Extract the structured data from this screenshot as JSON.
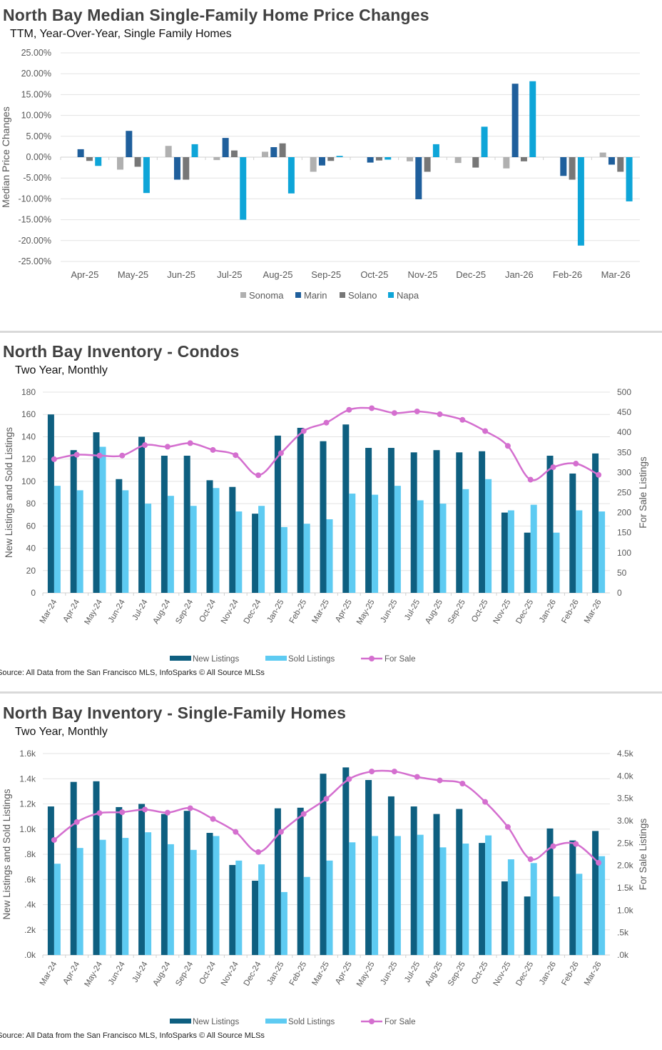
{
  "colors": {
    "sonoma": "#b0b0b0",
    "marin": "#1f5f9c",
    "solano": "#777777",
    "napa": "#0ea5d8",
    "new": "#0e5f80",
    "sold": "#5ecbf2",
    "for_sale": "#d46fcf",
    "grid": "#e3e3e3"
  },
  "chart_data": [
    {
      "type": "bar",
      "title": "North Bay Median Single-Family Home Price Changes",
      "subtitle": "TTM, Year-Over-Year, Single Family Homes",
      "ylabel": "Median Price Changes",
      "ylim": [
        -25,
        25
      ],
      "yticks": [
        "25.00%",
        "20.00%",
        "15.00%",
        "10.00%",
        "5.00%",
        "0.00%",
        "-5.00%",
        "-10.00%",
        "-15.00%",
        "-20.00%",
        "-25.00%"
      ],
      "grid": true,
      "legend": "bottom",
      "categories": [
        "Apr-25",
        "May-25",
        "Jun-25",
        "Jul-25",
        "Aug-25",
        "Sep-25",
        "Oct-25",
        "Nov-25",
        "Dec-25",
        "Jan-26",
        "Feb-26",
        "Mar-26"
      ],
      "series": [
        {
          "name": "Sonoma",
          "values": [
            0,
            -3.0,
            2.7,
            -0.7,
            1.3,
            -3.5,
            0,
            -1.0,
            -1.4,
            -2.7,
            0,
            1.1
          ]
        },
        {
          "name": "Marin",
          "values": [
            1.9,
            6.3,
            -5.4,
            4.6,
            2.4,
            -2.0,
            -1.3,
            -10.1,
            0,
            17.6,
            -4.5,
            -1.8
          ]
        },
        {
          "name": "Solano",
          "values": [
            -0.9,
            -2.3,
            -5.4,
            1.6,
            3.3,
            -0.9,
            -0.8,
            -3.5,
            -2.5,
            -1.0,
            -5.4,
            -3.5
          ]
        },
        {
          "name": "Napa",
          "values": [
            -2.1,
            -8.6,
            3.1,
            -15.0,
            -8.7,
            0.3,
            -0.6,
            3.1,
            7.3,
            18.2,
            -21.2,
            -10.6
          ]
        }
      ]
    },
    {
      "type": "bar+line",
      "title": "North Bay Inventory - Condos",
      "subtitle": "Two Year, Monthly",
      "ylabel": "New Listings and Sold Listings",
      "y2label": "For Sale Listings",
      "ylim": [
        0,
        180
      ],
      "y2lim": [
        0,
        500
      ],
      "yticks": [
        "0",
        "20",
        "40",
        "60",
        "80",
        "100",
        "120",
        "140",
        "160",
        "180"
      ],
      "y2ticks": [
        "0",
        "50",
        "100",
        "150",
        "200",
        "250",
        "300",
        "350",
        "400",
        "450",
        "500"
      ],
      "grid": true,
      "legend": "bottom",
      "categories": [
        "Mar-24",
        "Apr-24",
        "May-24",
        "Jun-24",
        "Jul-24",
        "Aug-24",
        "Sep-24",
        "Oct-24",
        "Nov-24",
        "Dec-24",
        "Jan-25",
        "Feb-25",
        "Mar-25",
        "Apr-25",
        "May-25",
        "Jun-25",
        "Jul-25",
        "Aug-25",
        "Sep-25",
        "Oct-25",
        "Nov-25",
        "Dec-25",
        "Jan-26",
        "Feb-26",
        "Mar-26"
      ],
      "series": [
        {
          "name": "New Listings",
          "values": [
            160,
            128,
            144,
            102,
            140,
            123,
            123,
            101,
            95,
            71,
            141,
            148,
            136,
            151,
            130,
            130,
            126,
            128,
            126,
            127,
            72,
            54,
            123,
            107,
            125
          ]
        },
        {
          "name": "Sold Listings",
          "values": [
            96,
            92,
            131,
            92,
            80,
            87,
            78,
            94,
            73,
            78,
            59,
            62,
            66,
            89,
            88,
            96,
            83,
            80,
            93,
            102,
            74,
            79,
            54,
            74,
            73
          ]
        },
        {
          "name": "For Sale",
          "axis": "right",
          "values": [
            333,
            344,
            342,
            342,
            368,
            364,
            373,
            356,
            343,
            293,
            348,
            403,
            424,
            456,
            460,
            448,
            452,
            445,
            431,
            403,
            366,
            282,
            313,
            322,
            294
          ]
        }
      ],
      "source": "Source: All Data from the San Francisco MLS, InfoSparks © All Source MLSs"
    },
    {
      "type": "bar+line",
      "title": "North Bay Inventory - Single-Family Homes",
      "subtitle": "Two Year, Monthly",
      "ylabel": "New Listings and Sold Listings",
      "y2label": "For Sale Listings",
      "ylim": [
        0,
        1600
      ],
      "y2lim": [
        0,
        4500
      ],
      "yticks": [
        ".0k",
        ".2k",
        ".4k",
        ".6k",
        ".8k",
        "1.0k",
        "1.2k",
        "1.4k",
        "1.6k"
      ],
      "y2ticks": [
        ".0k",
        ".5k",
        "1.0k",
        "1.5k",
        "2.0k",
        "2.5k",
        "3.0k",
        "3.5k",
        "4.0k",
        "4.5k"
      ],
      "grid": true,
      "legend": "bottom",
      "categories": [
        "Mar-24",
        "Apr-24",
        "May-24",
        "Jun-24",
        "Jul-24",
        "Aug-24",
        "Sep-24",
        "Oct-24",
        "Nov-24",
        "Dec-24",
        "Jan-25",
        "Feb-25",
        "Mar-25",
        "Apr-25",
        "May-25",
        "Jun-25",
        "Jul-25",
        "Aug-25",
        "Sep-25",
        "Oct-25",
        "Nov-25",
        "Dec-25",
        "Jan-26",
        "Feb-26",
        "Mar-26"
      ],
      "series": [
        {
          "name": "New Listings",
          "values": [
            1180,
            1375,
            1380,
            1175,
            1200,
            1120,
            1145,
            970,
            715,
            590,
            1165,
            1170,
            1440,
            1490,
            1390,
            1260,
            1180,
            1120,
            1160,
            890,
            585,
            465,
            1005,
            910,
            985
          ]
        },
        {
          "name": "Sold Listings",
          "values": [
            725,
            850,
            915,
            930,
            975,
            880,
            835,
            945,
            750,
            720,
            500,
            620,
            750,
            895,
            945,
            945,
            955,
            855,
            885,
            950,
            760,
            730,
            465,
            645,
            785
          ]
        },
        {
          "name": "For Sale",
          "axis": "right",
          "values": [
            2570,
            2970,
            3170,
            3190,
            3250,
            3180,
            3280,
            3040,
            2750,
            2300,
            2750,
            3150,
            3490,
            3930,
            4100,
            4100,
            3980,
            3900,
            3830,
            3420,
            2860,
            2140,
            2430,
            2480,
            2060
          ]
        }
      ],
      "source": "Source: All Data from the San Francisco MLS, InfoSparks © All Source MLSs"
    }
  ]
}
